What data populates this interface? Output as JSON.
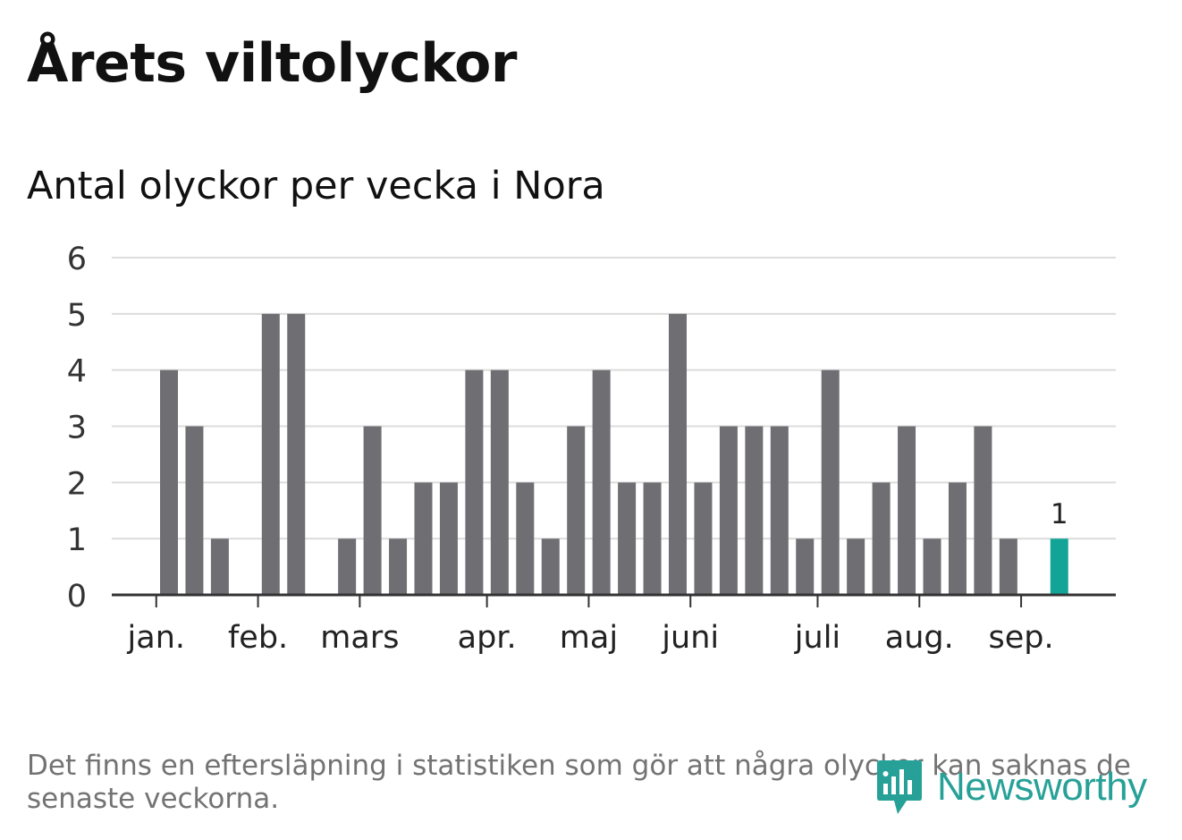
{
  "header": {
    "title": "Årets viltolyckor",
    "subtitle": "Antal olyckor per vecka i Nora"
  },
  "footer": {
    "note": "Det finns en eftersläpning i statistiken som gör att några olyckor kan saknas de senaste veckorna.",
    "logo_text": "Newsworthy"
  },
  "colors": {
    "bar": "#6f6e73",
    "highlight": "#12a597",
    "grid": "#dcdcdc",
    "axis": "#333333",
    "logo": "#27a198"
  },
  "chart_data": {
    "type": "bar",
    "title": "Antal olyckor per vecka i Nora",
    "xlabel": "",
    "ylabel": "",
    "ylim": [
      0,
      6
    ],
    "yticks": [
      0,
      1,
      2,
      3,
      4,
      5,
      6
    ],
    "grid": true,
    "weeks": [
      1,
      2,
      3,
      4,
      5,
      6,
      7,
      8,
      9,
      10,
      11,
      12,
      13,
      14,
      15,
      16,
      17,
      18,
      19,
      20,
      21,
      22,
      23,
      24,
      25,
      26,
      27,
      28,
      29,
      30,
      31,
      32,
      33,
      34,
      35,
      36,
      37
    ],
    "values": [
      0,
      4,
      3,
      1,
      0,
      5,
      5,
      0,
      1,
      3,
      1,
      2,
      2,
      4,
      4,
      2,
      1,
      3,
      4,
      2,
      2,
      5,
      2,
      3,
      3,
      3,
      1,
      4,
      1,
      2,
      3,
      1,
      2,
      3,
      1,
      0,
      1
    ],
    "highlight_index": 36,
    "highlight_label": "1",
    "month_labels": [
      {
        "label": "jan.",
        "week": 1.5
      },
      {
        "label": "feb.",
        "week": 5.5
      },
      {
        "label": "mars",
        "week": 9.5
      },
      {
        "label": "apr.",
        "week": 14.5
      },
      {
        "label": "maj",
        "week": 18.5
      },
      {
        "label": "juni",
        "week": 22.5
      },
      {
        "label": "juli",
        "week": 27.5
      },
      {
        "label": "aug.",
        "week": 31.5
      },
      {
        "label": "sep.",
        "week": 35.5
      }
    ]
  }
}
